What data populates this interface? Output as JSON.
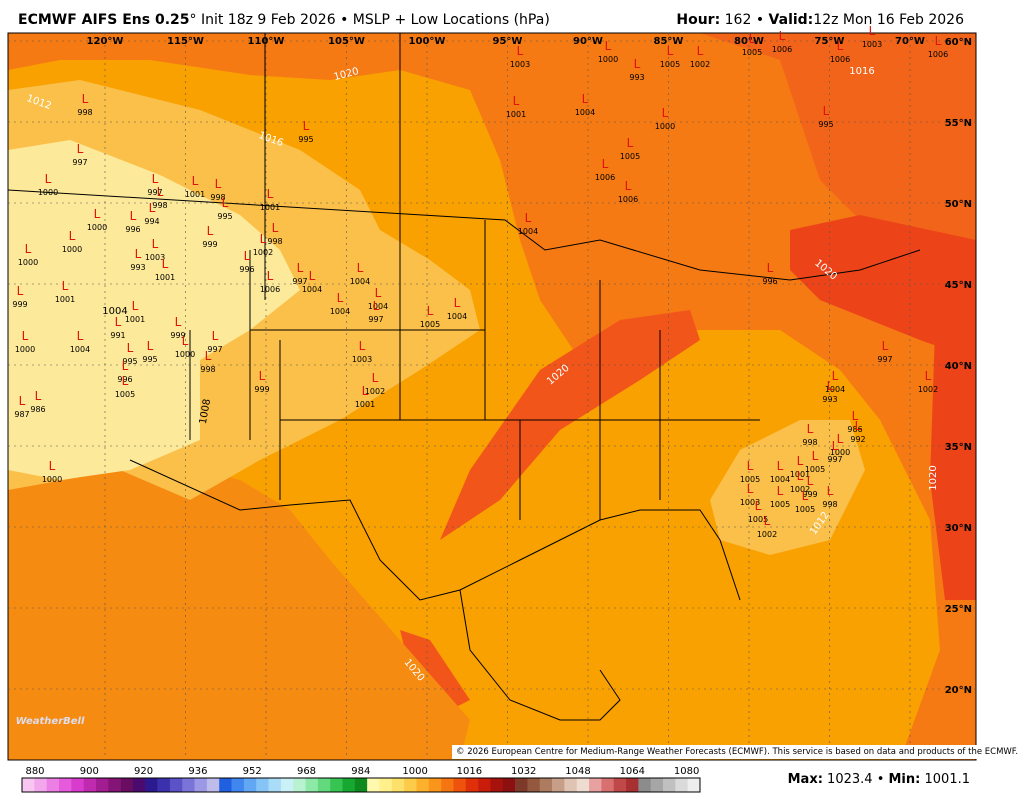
{
  "header": {
    "title": "ECMWF AIFS Ens 0.25",
    "degree": "°",
    "init": "Init 18z 9 Feb 2026 • MSLP + Low Locations (hPa)",
    "hour_label": "Hour:",
    "hour": "162",
    "bullet": "•",
    "valid_label": "Valid:",
    "valid": "12z Mon 16 Feb 2026"
  },
  "map": {
    "lon_labels": [
      "120°W",
      "115°W",
      "110°W",
      "105°W",
      "100°W",
      "95°W",
      "90°W",
      "85°W",
      "80°W",
      "75°W",
      "70°W"
    ],
    "lat_labels": [
      "60°N",
      "55°N",
      "50°N",
      "45°N",
      "40°N",
      "35°N",
      "30°N",
      "25°N",
      "20°N"
    ],
    "isobar_labels": [
      "1020",
      "1012",
      "1016",
      "1004",
      "1008",
      "1020",
      "1020",
      "1020",
      "1012",
      "1020",
      "1016"
    ],
    "low_symbol": "L",
    "lows": [
      "998",
      "997",
      "1000",
      "1000",
      "1000",
      "1000",
      "998",
      "997",
      "994",
      "996",
      "1001",
      "998",
      "995",
      "1001",
      "995",
      "999",
      "996",
      "1002",
      "998",
      "1006",
      "997",
      "1004",
      "1004",
      "1004",
      "1004",
      "997",
      "1005",
      "1004",
      "993",
      "1003",
      "1001",
      "1001",
      "999",
      "1000",
      "1004",
      "991",
      "1001",
      "995",
      "995",
      "999",
      "1000",
      "997",
      "998",
      "996",
      "1005",
      "986",
      "987",
      "1000",
      "999",
      "1003",
      "1002",
      "1001",
      "1003",
      "1000",
      "993",
      "1005",
      "1002",
      "1005",
      "1006",
      "1006",
      "1003",
      "1006",
      "1001",
      "1004",
      "1000",
      "1005",
      "1006",
      "1006",
      "995",
      "1004",
      "996",
      "997",
      "1002",
      "1004",
      "993",
      "986",
      "992",
      "998",
      "1000",
      "997",
      "1001",
      "1005",
      "1004",
      "1005",
      "1003",
      "1005",
      "1002",
      "999",
      "998",
      "1005",
      "1005",
      "1002"
    ],
    "logo": "WeatherBell",
    "copyright": "© 2026 European Centre for Medium-Range Weather Forecasts (ECMWF). This service is based on data and products of the ECMWF."
  },
  "colorbar": {
    "labels": [
      "880",
      "900",
      "920",
      "936",
      "952",
      "968",
      "984",
      "1000",
      "1016",
      "1032",
      "1048",
      "1064",
      "1080"
    ],
    "colors": [
      "#f7c7f2",
      "#f2a6ec",
      "#ec7fe4",
      "#e65bdc",
      "#d93ccc",
      "#c02aae",
      "#a31d92",
      "#851477",
      "#6a0d62",
      "#4b0b6e",
      "#2b1a8f",
      "#3c31ad",
      "#5a52c6",
      "#7b74d8",
      "#9c98e6",
      "#bebceb",
      "#1f5fe0",
      "#3f86ef",
      "#62a7f4",
      "#86c4f6",
      "#a9dcf7",
      "#caf0f8",
      "#b8f2d0",
      "#8ee9a8",
      "#62d97c",
      "#37c452",
      "#17a832",
      "#0f8a1e",
      "#fff9b0",
      "#fff08c",
      "#fde06a",
      "#fccb4a",
      "#fbb12c",
      "#f9951a",
      "#f57512",
      "#ee520c",
      "#e0300a",
      "#c91c0a",
      "#a8120c",
      "#8c1010",
      "#7d3a2a",
      "#94583e",
      "#ad7b60",
      "#c79f88",
      "#dfc4b4",
      "#efdcd0",
      "#e8a0a0",
      "#d87070",
      "#c04848",
      "#a83030",
      "#8c8c8c",
      "#a6a6a6",
      "#c0c0c0",
      "#dadada",
      "#eeeeee"
    ],
    "max_label": "Max:",
    "max": "1023.4",
    "min_label": "Min:",
    "min": "1001.1"
  }
}
